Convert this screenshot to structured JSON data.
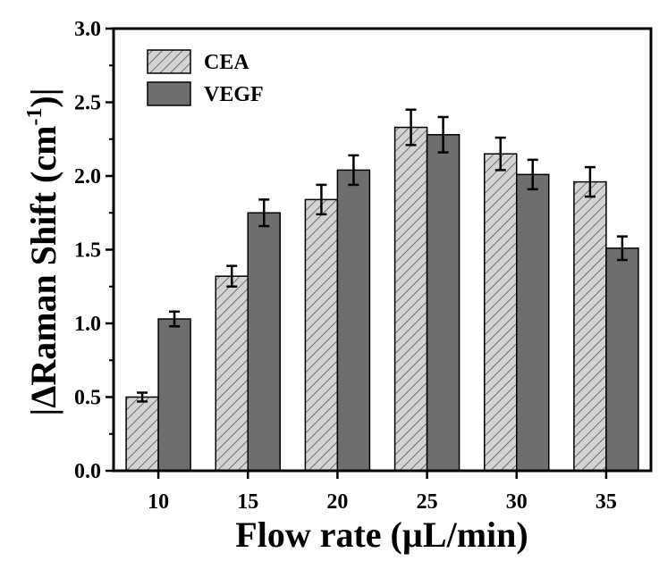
{
  "chart_data": {
    "type": "bar",
    "title": "",
    "xlabel": "Flow rate (µL/min)",
    "ylabel": {
      "prefix": "|ΔRaman Shift (cm",
      "superscript": "-1",
      "suffix": ")|"
    },
    "categories": [
      "10",
      "15",
      "20",
      "25",
      "30",
      "35"
    ],
    "ylim": [
      0,
      3.0
    ],
    "yticks": [
      "0.0",
      "0.5",
      "1.0",
      "1.5",
      "2.0",
      "2.5",
      "3.0"
    ],
    "legend_position": "top-left",
    "series": [
      {
        "name": "CEA",
        "values": [
          0.5,
          1.32,
          1.84,
          2.33,
          2.15,
          1.96
        ],
        "errors": [
          0.03,
          0.07,
          0.1,
          0.12,
          0.11,
          0.1
        ],
        "color": "#d3d3d3",
        "hatch": true
      },
      {
        "name": "VEGF",
        "values": [
          1.03,
          1.75,
          2.04,
          2.28,
          2.01,
          1.51
        ],
        "errors": [
          0.05,
          0.09,
          0.1,
          0.12,
          0.1,
          0.08
        ],
        "color": "#6e6e6e",
        "hatch": false
      }
    ]
  }
}
